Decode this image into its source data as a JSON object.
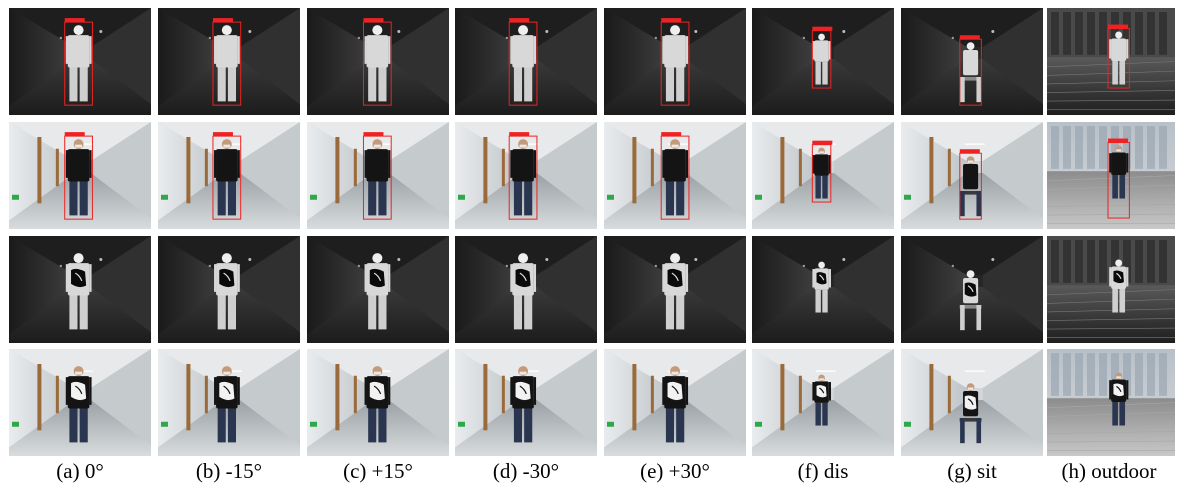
{
  "captions": [
    "(a) 0°",
    "(b) -15°",
    "(c) +15°",
    "(d) -30°",
    "(e) +30°",
    "(f) dis",
    "(g) sit",
    "(h) outdoor"
  ],
  "rows": [
    {
      "modality": "thermal",
      "scene": "corridor-dark",
      "has_detection_box": true
    },
    {
      "modality": "visible",
      "scene": "corridor-bright",
      "has_detection_box": true
    },
    {
      "modality": "thermal-adversarial-patch",
      "scene": "corridor-dark",
      "has_detection_box": false
    },
    {
      "modality": "visible-adversarial-patch",
      "scene": "corridor-bright",
      "has_detection_box": false
    }
  ],
  "columns": [
    {
      "pose": "stand",
      "offset": 0
    },
    {
      "pose": "stand",
      "offset": -15
    },
    {
      "pose": "stand",
      "offset": 15
    },
    {
      "pose": "stand",
      "offset": -30
    },
    {
      "pose": "stand",
      "offset": 30
    },
    {
      "pose": "stand-far",
      "offset": 0
    },
    {
      "pose": "sit",
      "offset": 0
    },
    {
      "pose": "stand-outdoor",
      "offset": 0
    }
  ],
  "colors": {
    "detection_box": "#ee2222",
    "thermal_bg": "#2f2f2f",
    "visible_wall": "#cfd3d6",
    "patch": "#0a0a0a",
    "exit_sign": "#2fa84a"
  }
}
